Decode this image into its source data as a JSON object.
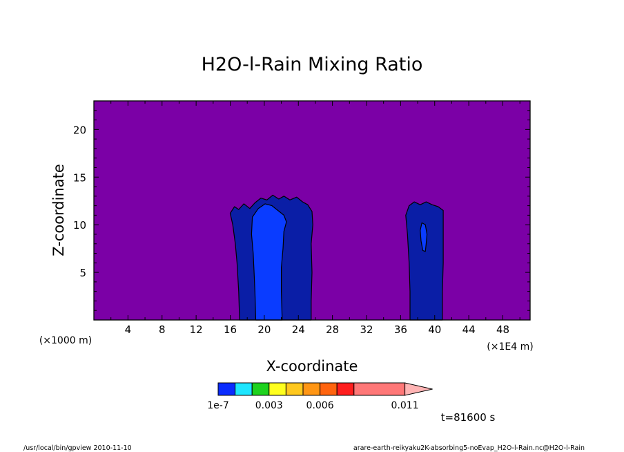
{
  "chart_data": {
    "type": "heatmap",
    "title": "H2O-l-Rain Mixing Ratio",
    "xlabel": "X-coordinate",
    "ylabel": "Z-coordinate",
    "x_unit": "(×1000 m)",
    "x_unit_right": "(×1E4 m)",
    "xlim": [
      0,
      51.2
    ],
    "ylim": [
      0,
      23
    ],
    "x_ticks": [
      4,
      8,
      12,
      16,
      20,
      24,
      28,
      32,
      36,
      40,
      44,
      48
    ],
    "y_ticks": [
      5,
      10,
      15,
      20
    ],
    "time_label": "t=81600 s",
    "background_color": "#7b00a6",
    "colorbar": {
      "colors": [
        "#0a2cff",
        "#1ee6ff",
        "#1ed21e",
        "#ffff1e",
        "#ffc81e",
        "#ff9614",
        "#ff640f",
        "#ff1e1e",
        "#ff7878",
        "#ffb4b4"
      ],
      "labels": [
        {
          "text": "1e-7",
          "pos": 0
        },
        {
          "text": "0.003",
          "pos": 3
        },
        {
          "text": "0.006",
          "pos": 6
        },
        {
          "text": "0.011",
          "pos": 11
        }
      ]
    },
    "regions": [
      {
        "name": "outer-1",
        "fill": "#0a1ea6",
        "points": [
          [
            17.1,
            0
          ],
          [
            17.0,
            3
          ],
          [
            16.8,
            6
          ],
          [
            16.6,
            8
          ],
          [
            16.3,
            10
          ],
          [
            16.0,
            11.2
          ],
          [
            16.5,
            11.9
          ],
          [
            17.0,
            11.6
          ],
          [
            17.6,
            12.2
          ],
          [
            18.3,
            11.7
          ],
          [
            18.9,
            12.3
          ],
          [
            19.6,
            12.8
          ],
          [
            20.3,
            12.6
          ],
          [
            21.0,
            13.1
          ],
          [
            21.7,
            12.7
          ],
          [
            22.3,
            13.0
          ],
          [
            23.0,
            12.6
          ],
          [
            23.8,
            12.9
          ],
          [
            24.5,
            12.4
          ],
          [
            25.1,
            12.1
          ],
          [
            25.6,
            11.4
          ],
          [
            25.7,
            10
          ],
          [
            25.5,
            8
          ],
          [
            25.6,
            5
          ],
          [
            25.5,
            2
          ],
          [
            25.5,
            0
          ]
        ]
      },
      {
        "name": "inner-1",
        "fill": "#0a3cff",
        "points": [
          [
            19.0,
            0
          ],
          [
            18.9,
            3
          ],
          [
            18.8,
            5
          ],
          [
            18.7,
            7
          ],
          [
            18.5,
            9
          ],
          [
            18.6,
            10.8
          ],
          [
            19.3,
            11.7
          ],
          [
            20.1,
            12.2
          ],
          [
            20.9,
            12.0
          ],
          [
            21.6,
            11.5
          ],
          [
            22.3,
            11.0
          ],
          [
            22.6,
            10.3
          ],
          [
            22.3,
            9.3
          ],
          [
            22.2,
            7.5
          ],
          [
            22.0,
            5.5
          ],
          [
            22.0,
            3
          ],
          [
            22.1,
            0
          ]
        ]
      },
      {
        "name": "outer-2",
        "fill": "#0a1ea6",
        "points": [
          [
            37.1,
            0
          ],
          [
            37.1,
            3
          ],
          [
            37.0,
            6
          ],
          [
            36.8,
            9
          ],
          [
            36.6,
            11.0
          ],
          [
            37.0,
            12.0
          ],
          [
            37.6,
            12.4
          ],
          [
            38.3,
            12.1
          ],
          [
            39.0,
            12.4
          ],
          [
            39.7,
            12.1
          ],
          [
            40.4,
            11.9
          ],
          [
            41.0,
            11.5
          ],
          [
            41.0,
            9
          ],
          [
            41.0,
            6
          ],
          [
            40.9,
            3
          ],
          [
            40.9,
            0
          ]
        ]
      },
      {
        "name": "inner-2",
        "fill": "#0a3cff",
        "points": [
          [
            38.6,
            7.3
          ],
          [
            38.4,
            8.3
          ],
          [
            38.3,
            9.4
          ],
          [
            38.5,
            10.2
          ],
          [
            38.9,
            10.0
          ],
          [
            39.1,
            9.0
          ],
          [
            39.0,
            8.0
          ],
          [
            38.9,
            7.2
          ]
        ]
      }
    ]
  },
  "footer": {
    "left": "/usr/local/bin/gpview   2010-11-10",
    "right": "arare-earth-reikyaku2K-absorbing5-noEvap_H2O-l-Rain.nc@H2O-l-Rain"
  }
}
